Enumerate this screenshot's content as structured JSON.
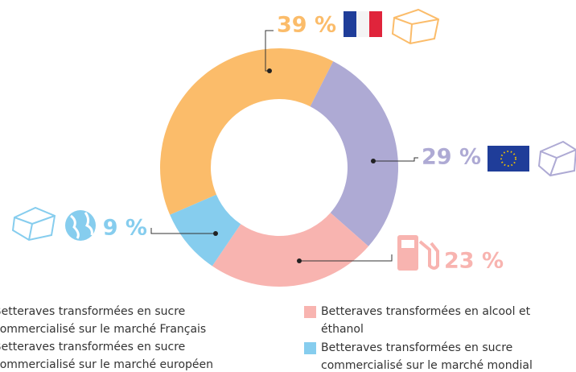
{
  "chart_data": {
    "type": "donut",
    "categories": [
      "Betteraves transformées en sucre commercialisé sur le marché Français",
      "Betteraves transformées en sucre commercialisé sur le marché européen",
      "Betteraves transformées en alcool et éthanol",
      "Betteraves transformées en sucre commercialisé sur le marché mondial"
    ],
    "values": [
      39,
      29,
      23,
      9
    ],
    "value_labels": [
      "39 %",
      "29 %",
      "23 %",
      "9 %"
    ],
    "colors": [
      "#fbbc6a",
      "#aeaad4",
      "#f8b4b0",
      "#86cdee"
    ]
  }
}
